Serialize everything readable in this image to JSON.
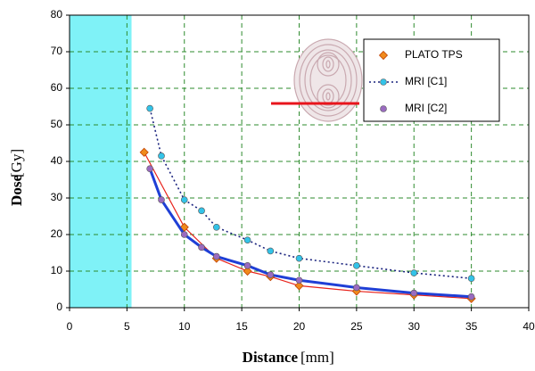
{
  "chart_data": {
    "type": "scatter",
    "xlabel": "Distance",
    "xlabel_unit": "[mm]",
    "ylabel": "Dose",
    "ylabel_unit": "[Gy]",
    "xlim": [
      0,
      40
    ],
    "xticks": [
      0,
      5,
      10,
      15,
      20,
      25,
      30,
      35,
      40
    ],
    "ylim": [
      0,
      80
    ],
    "yticks": [
      0,
      10,
      20,
      30,
      40,
      50,
      60,
      70,
      80
    ],
    "grid": true,
    "grid_color": "#2e8b2e",
    "shaded_xlim": [
      0,
      5.4
    ],
    "shaded_color": "#7ff2f7",
    "legend": "upper right",
    "series": [
      {
        "name": "PLATO TPS",
        "color": "#f08a1c",
        "line_color": "#e8231c",
        "marker": "diamond",
        "x": [
          6.5,
          10,
          12.8,
          15.5,
          17.5,
          20,
          25,
          30,
          35
        ],
        "values": [
          42.5,
          22,
          13.5,
          10,
          8.5,
          6,
          4.5,
          3.5,
          2.5
        ]
      },
      {
        "name": "MRI [C1]",
        "color": "#33c3e8",
        "line_color": "#1a237e",
        "line_style": "dotted",
        "marker": "circle",
        "x": [
          7,
          8,
          10,
          11.5,
          12.8,
          15.5,
          17.5,
          20,
          25,
          30,
          35
        ],
        "values": [
          54.5,
          41.5,
          29.5,
          26.5,
          22,
          18.5,
          15.5,
          13.5,
          11.5,
          9.5,
          8
        ]
      },
      {
        "name": "MRI [C2]",
        "color": "#9a6bc0",
        "line_color": "#1f3fd6",
        "line_style": "thick",
        "marker": "circle",
        "x": [
          7,
          8,
          10,
          11.5,
          12.8,
          15.5,
          17.5,
          20,
          25,
          30,
          35
        ],
        "values": [
          38,
          29.5,
          20,
          16.5,
          14,
          11.5,
          9,
          7.5,
          5.5,
          4,
          3
        ]
      }
    ]
  }
}
